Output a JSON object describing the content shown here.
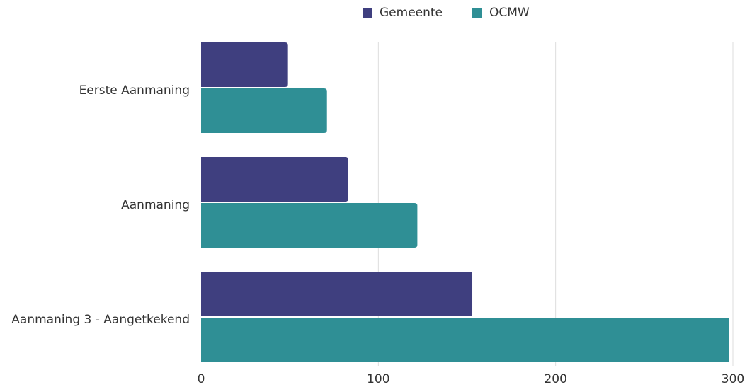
{
  "colors": {
    "gemeente": "#3f3f7f",
    "ocmw": "#2f8f95",
    "grid": "#dddddd",
    "text": "#333333"
  },
  "chart_data": {
    "type": "bar",
    "orientation": "horizontal",
    "categories": [
      "Eerste Aanmaning",
      "Aanmaning",
      "Aanmaning 3 - Aangetkekend"
    ],
    "series": [
      {
        "name": "Gemeente",
        "values": [
          49,
          83,
          153
        ]
      },
      {
        "name": "OCMW",
        "values": [
          71,
          122,
          298
        ]
      }
    ],
    "title": "",
    "xlabel": "",
    "ylabel": "",
    "xlim": [
      0,
      300
    ],
    "xticks": [
      "0",
      "100",
      "200",
      "300"
    ],
    "grid": true,
    "legend": "top-center"
  }
}
